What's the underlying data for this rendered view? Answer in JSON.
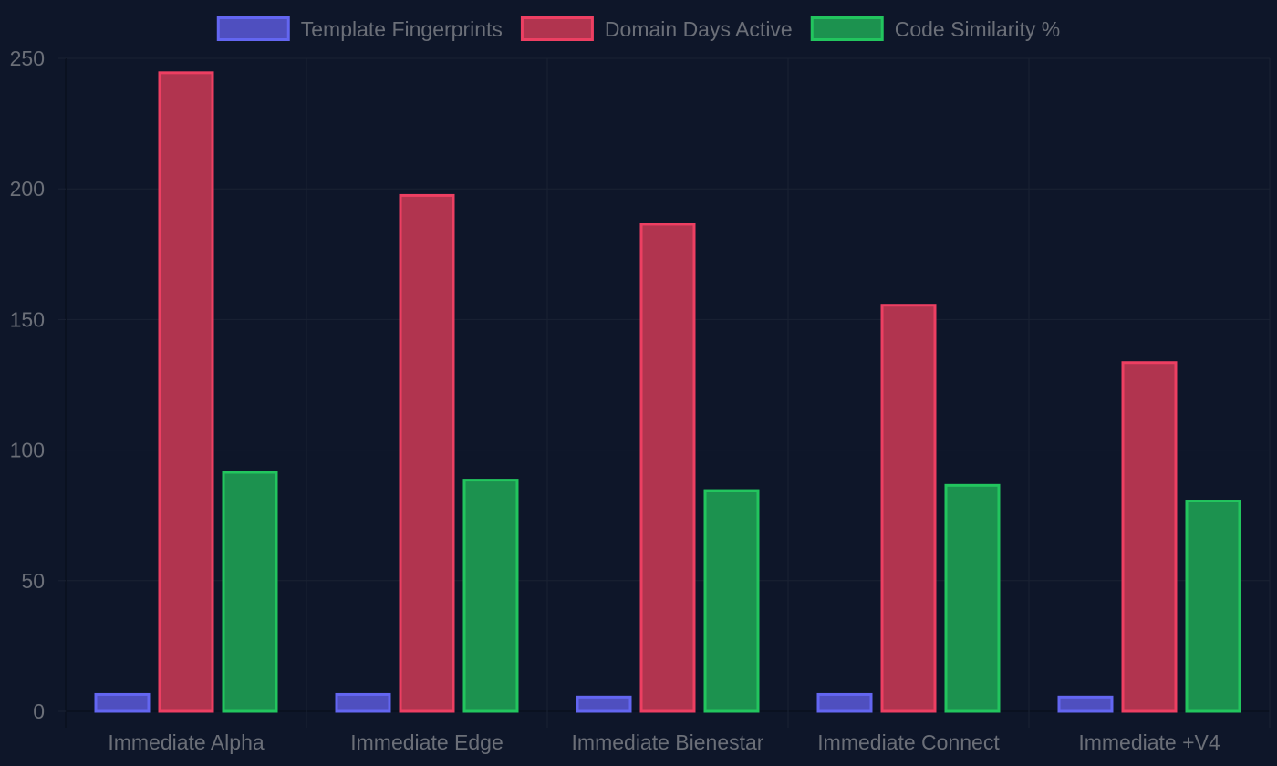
{
  "chart_data": {
    "type": "bar",
    "title": "",
    "xlabel": "",
    "ylabel": "",
    "categories": [
      "Immediate Alpha",
      "Immediate Edge",
      "Immediate Bienestar",
      "Immediate Connect",
      "Immediate +V4"
    ],
    "series": [
      {
        "name": "Template Fingerprints",
        "values": [
          7,
          7,
          6,
          7,
          6
        ],
        "fill": "#4f4fbf",
        "stroke": "#6366f1"
      },
      {
        "name": "Domain Days Active",
        "values": [
          245,
          198,
          187,
          156,
          134
        ],
        "fill": "#b1344f",
        "stroke": "#ed3f62"
      },
      {
        "name": "Code Similarity %",
        "values": [
          92,
          89,
          85,
          87,
          81
        ],
        "fill": "#1c924f",
        "stroke": "#22c55e"
      }
    ],
    "ylim": [
      0,
      250
    ],
    "yticks": [
      0,
      50,
      100,
      150,
      200,
      250
    ],
    "legend_position": "top-center",
    "grid": true,
    "colors": {
      "background": "#0e1629",
      "grid": "#1a2233",
      "text": "#6b6f78"
    }
  }
}
